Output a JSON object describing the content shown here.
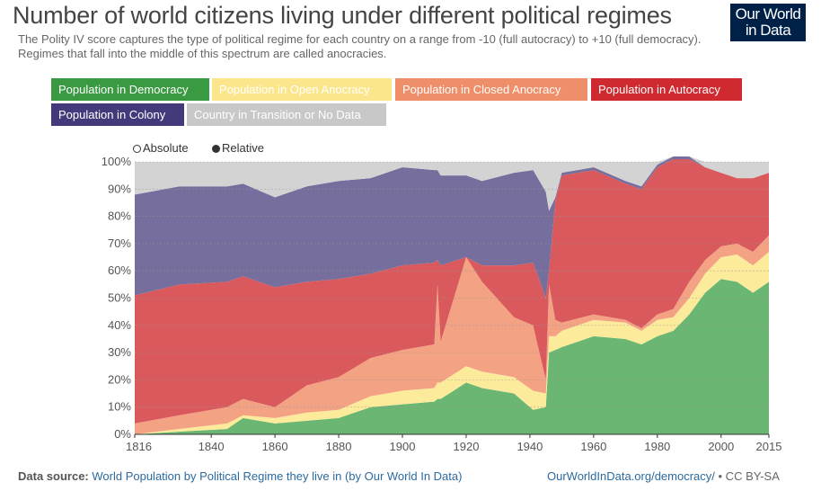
{
  "title": "Number of world citizens living under different political regimes",
  "subtitle": "The Polity IV score captures the type of political regime for each country on a range from -10 (full autocracy) to +10 (full democracy). Regimes that fall into the middle of this spectrum are called anocracies.",
  "logo": {
    "line1": "Our World",
    "line2": "in Data"
  },
  "legend": [
    {
      "label": "Population in Democracy",
      "color": "#3a9a41",
      "text": "#ffffff"
    },
    {
      "label": "Population in Open Anocracy",
      "color": "#fce68c",
      "text": "#ffffff"
    },
    {
      "label": "Population in Closed Anocracy",
      "color": "#ef8f6a",
      "text": "#ffffff"
    },
    {
      "label": "Population in Autocracy",
      "color": "#cf2a2f",
      "text": "#ffffff"
    },
    {
      "label": "Population in Colony",
      "color": "#433a7b",
      "text": "#ffffff"
    },
    {
      "label": "Country in Transition or No Data",
      "color": "#c8c8c8",
      "text": "#ffffff"
    }
  ],
  "toggle": {
    "absolute": "Absolute",
    "relative": "Relative"
  },
  "footer": {
    "source_label": "Data source:",
    "source_text": "World Population by Political Regime they live in (by Our World In Data)",
    "link_text": "OurWorldInData.org/democracy/",
    "license": "• CC BY-SA"
  },
  "chart_data": {
    "type": "area",
    "stacked": true,
    "ylim": [
      0,
      100
    ],
    "xlim": [
      1816,
      2015
    ],
    "y_ticks": [
      "0%",
      "10%",
      "20%",
      "30%",
      "40%",
      "50%",
      "60%",
      "70%",
      "80%",
      "90%",
      "100%"
    ],
    "x_ticks": [
      "1816",
      "1840",
      "1860",
      "1880",
      "1900",
      "1920",
      "1940",
      "1960",
      "1980",
      "2000",
      "2015"
    ],
    "grid": true,
    "x": [
      1816,
      1830,
      1845,
      1850,
      1860,
      1870,
      1880,
      1890,
      1900,
      1910,
      1911,
      1912,
      1920,
      1925,
      1935,
      1941,
      1945,
      1946,
      1948,
      1950,
      1960,
      1970,
      1975,
      1980,
      1985,
      1990,
      1995,
      2000,
      2005,
      2010,
      2015
    ],
    "series": [
      {
        "name": "Population in Democracy",
        "color": "#6ab672",
        "values": [
          0,
          1,
          2,
          6,
          4,
          5,
          6,
          10,
          11,
          12,
          13,
          13,
          19,
          17,
          15,
          9,
          10,
          30,
          31,
          32,
          36,
          35,
          33,
          36,
          38,
          44,
          52,
          57,
          56,
          52,
          56
        ]
      },
      {
        "name": "Population in Open Anocracy",
        "color": "#fdeb9c",
        "values": [
          0,
          1,
          2,
          1,
          2,
          3,
          3,
          4,
          5,
          5,
          6,
          6,
          6,
          6,
          6,
          7,
          5,
          6,
          5,
          6,
          6,
          6,
          5,
          6,
          5,
          6,
          7,
          8,
          10,
          10,
          11
        ]
      },
      {
        "name": "Population in Closed Anocracy",
        "color": "#f4a284",
        "values": [
          4,
          5,
          6,
          6,
          4,
          10,
          12,
          14,
          15,
          16,
          36,
          15,
          40,
          33,
          22,
          24,
          5,
          19,
          6,
          3,
          2,
          1,
          1,
          2,
          3,
          6,
          5,
          4,
          4,
          5,
          6
        ]
      },
      {
        "name": "Population in Autocracy",
        "color": "#d9595d",
        "values": [
          47,
          48,
          46,
          45,
          44,
          38,
          36,
          31,
          31,
          30,
          9,
          28,
          0,
          6,
          19,
          23,
          30,
          5,
          44,
          54,
          53,
          50,
          51,
          54,
          55,
          45,
          34,
          27,
          24,
          27,
          23
        ]
      },
      {
        "name": "Population in Colony",
        "color": "#766e9c",
        "values": [
          37,
          36,
          35,
          34,
          33,
          35,
          36,
          35,
          36,
          34,
          33,
          33,
          30,
          31,
          34,
          34,
          39,
          22,
          1,
          1,
          1,
          1,
          1,
          1,
          1,
          1,
          0,
          0,
          0,
          0,
          0
        ]
      },
      {
        "name": "Country in Transition or No Data",
        "color": "#d3d3d3",
        "values": [
          12,
          9,
          9,
          8,
          13,
          9,
          7,
          6,
          2,
          3,
          3,
          5,
          5,
          7,
          4,
          3,
          11,
          18,
          13,
          4,
          2,
          7,
          9,
          1,
          0,
          0,
          2,
          4,
          6,
          6,
          4
        ]
      }
    ]
  }
}
